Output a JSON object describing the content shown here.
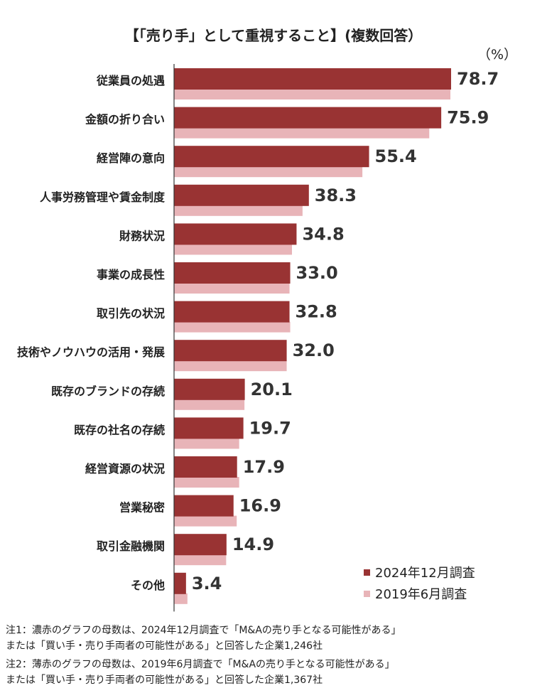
{
  "title": "【「売り手」として重視すること】(複数回答）",
  "unit": "（%）",
  "chart_data": {
    "type": "bar",
    "orientation": "horizontal",
    "categories": [
      "従業員の処遇",
      "金額の折り合い",
      "経営陣の意向",
      "人事労務管理や賃金制度",
      "財務状況",
      "事業の成長性",
      "取引先の状況",
      "技術やノウハウの活用・発展",
      "既存のブランドの存続",
      "既存の社名の存続",
      "経営資源の状況",
      "営業秘密",
      "取引金融機関",
      "その他"
    ],
    "series": [
      {
        "name": "2024年12月調査",
        "color": "#993333",
        "values": [
          78.7,
          75.9,
          55.4,
          38.3,
          34.8,
          33.0,
          32.8,
          32.0,
          20.1,
          19.7,
          17.9,
          16.9,
          14.9,
          3.4
        ],
        "labels": [
          "78.7",
          "75.9",
          "55.4",
          "38.3",
          "34.8",
          "33.0",
          "32.8",
          "32.0",
          "20.1",
          "19.7",
          "17.9",
          "16.9",
          "14.9",
          "3.4"
        ]
      },
      {
        "name": "2019年6月調査",
        "color": "#e8b4b8",
        "values": [
          78.5,
          72.5,
          53.5,
          36.5,
          33.5,
          32.8,
          33.0,
          32.0,
          20.0,
          18.5,
          18.5,
          17.8,
          14.8,
          3.8
        ]
      }
    ],
    "xlim": [
      0,
      100
    ],
    "grid": false,
    "legend": "bottom-right"
  },
  "notes": [
    "注1：濃赤のグラフの母数は、2024年12月調査で「M&Aの売り手となる可能性がある」",
    "または「買い手・売り手両者の可能性がある」と回答した企業1,246社",
    "注2：薄赤のグラフの母数は、2019年6月調査で「M&Aの売り手となる可能性がある」",
    "または「買い手・売り手両者の可能性がある」と回答した企業1,367社"
  ]
}
